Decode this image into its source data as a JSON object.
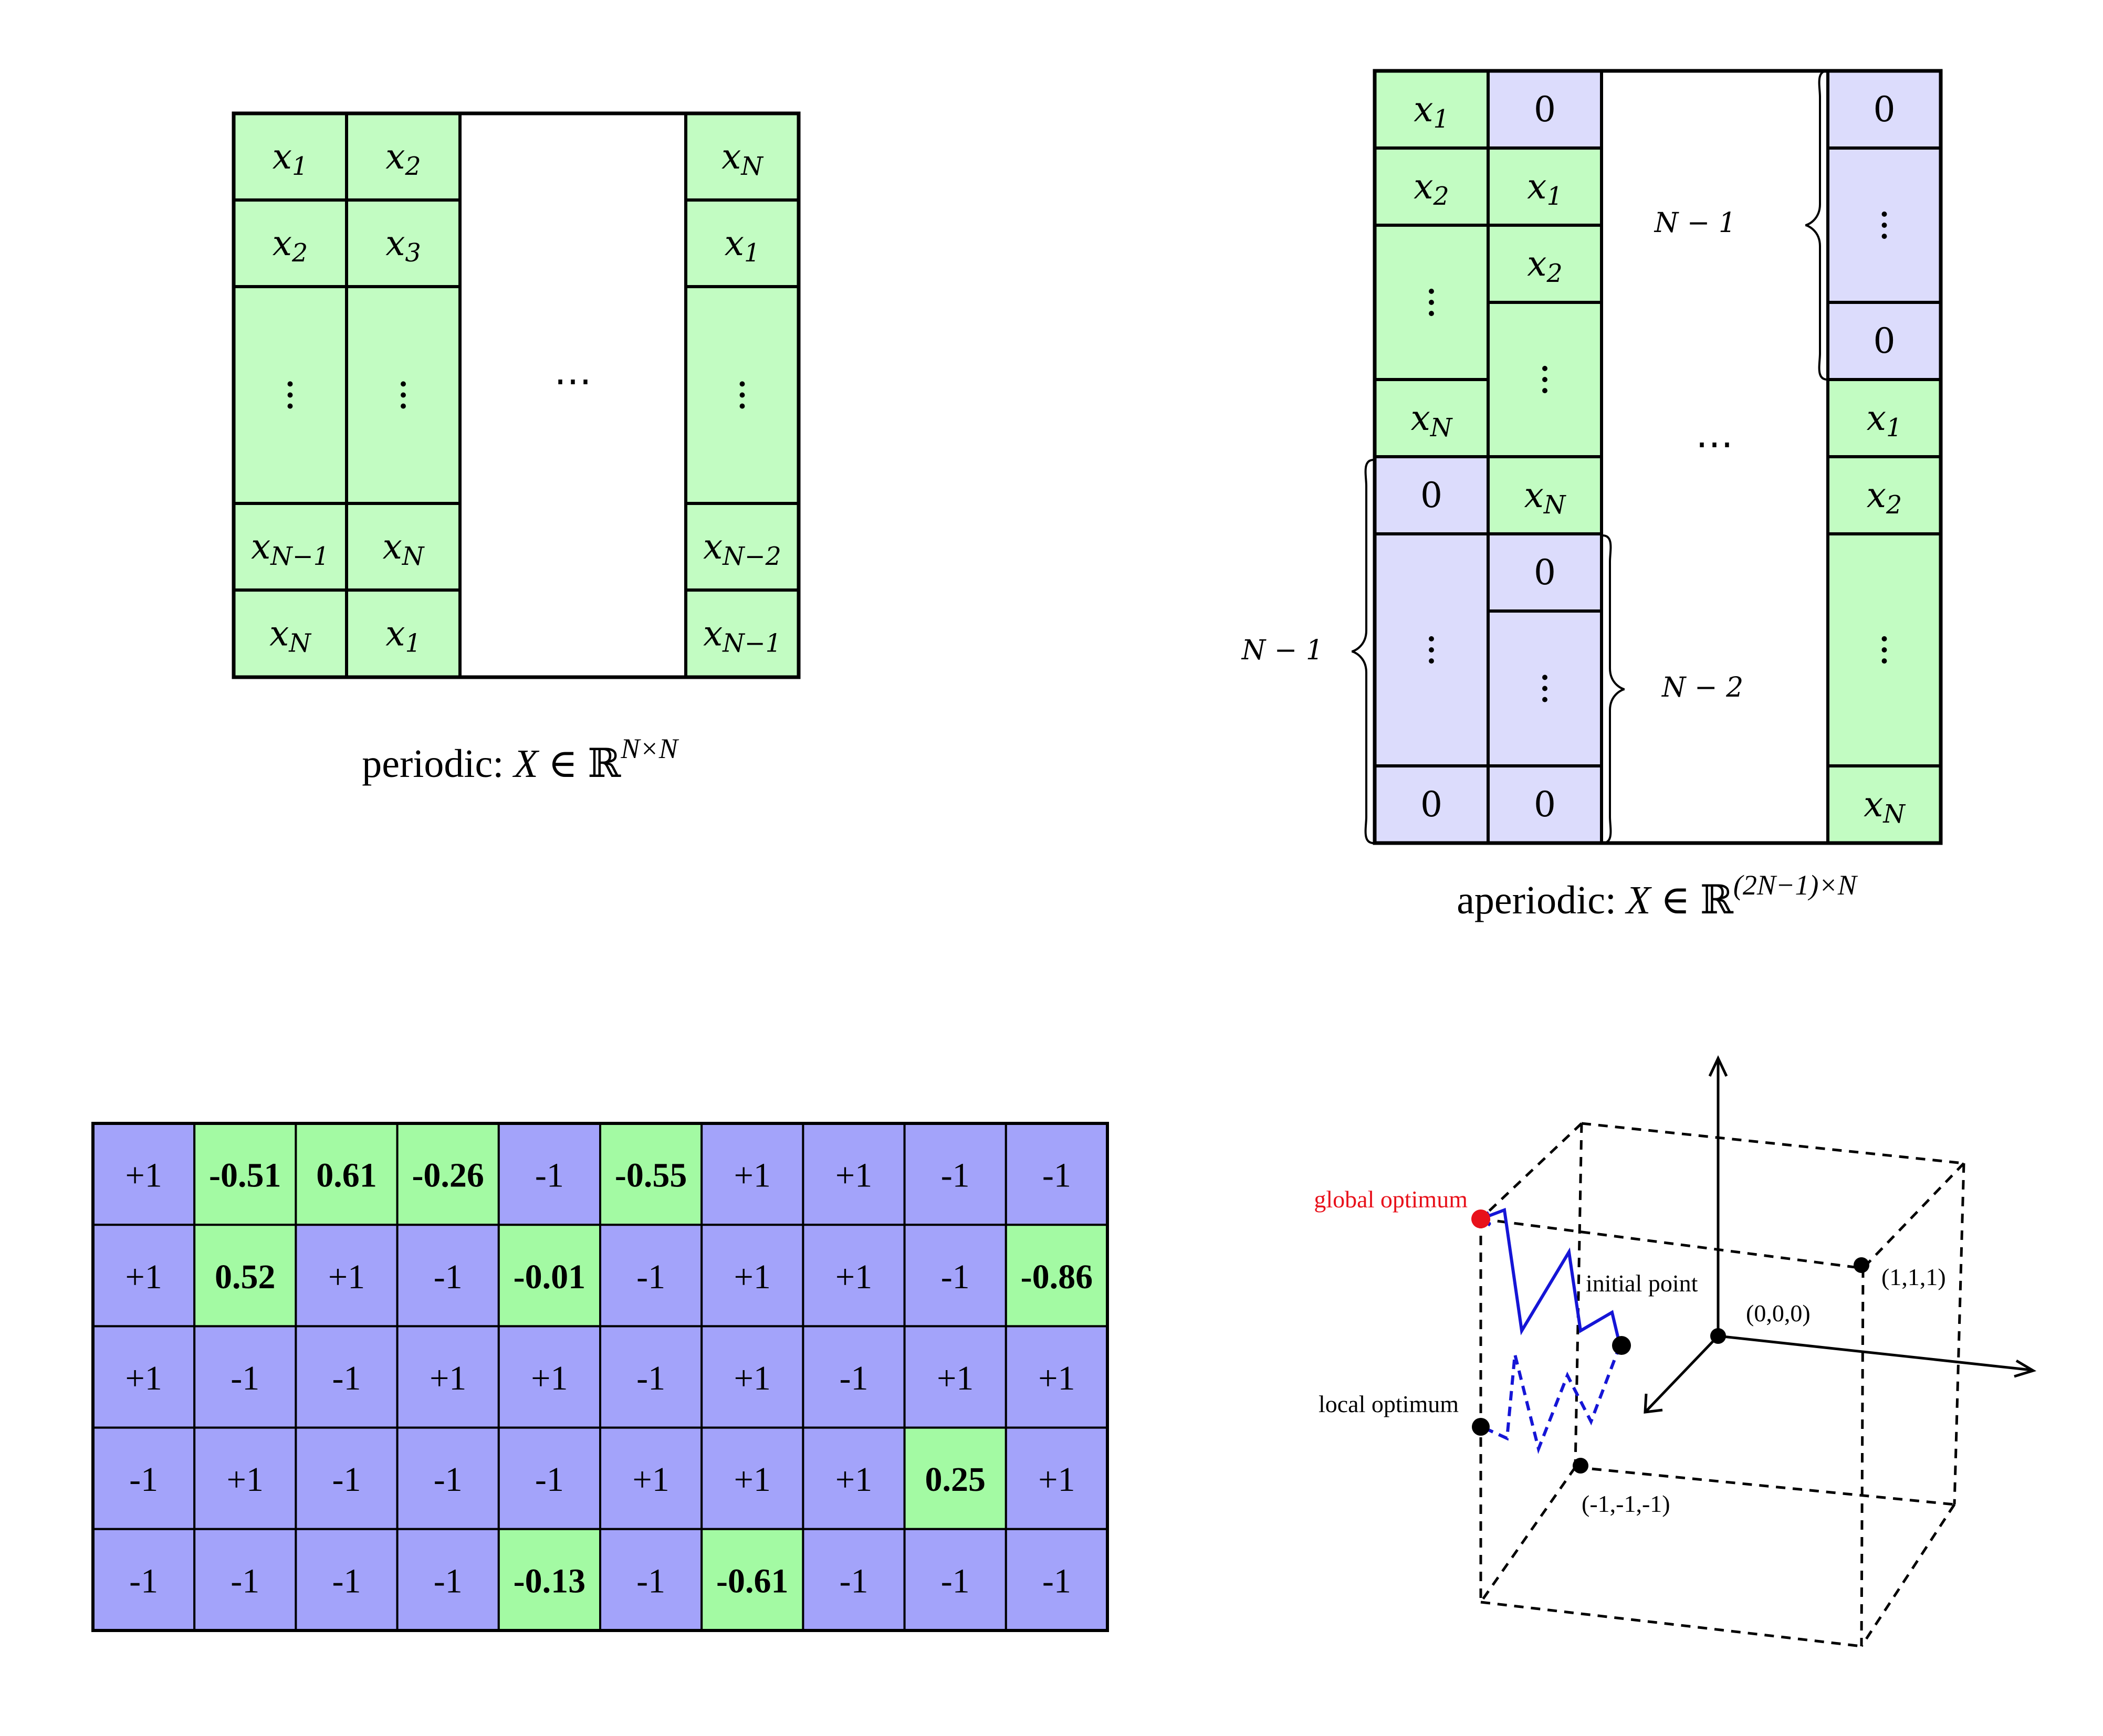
{
  "periodic": {
    "col1": [
      "x_1",
      "x_2",
      "⋮",
      "x_N−1",
      "x_N"
    ],
    "col2": [
      "x_2",
      "x_3",
      "⋮",
      "x_N",
      "x_1"
    ],
    "colN": [
      "x_N",
      "x_1",
      "⋮",
      "x_N−2",
      "x_N−1"
    ],
    "hdots": "⋯",
    "caption": "periodic: X ∈ ℝ^(N×N)",
    "caption_prefix": "periodic:",
    "caption_var": "X",
    "caption_rel": "∈",
    "caption_set": "ℝ",
    "caption_exp": "N×N"
  },
  "aperiodic": {
    "col1": [
      "x_1",
      "x_2",
      "⋮",
      "x_N",
      "0",
      "⋮",
      "0"
    ],
    "col2": [
      "0",
      "x_1",
      "x_2",
      "⋮",
      "x_N",
      "0",
      "⋮",
      "0"
    ],
    "colN": [
      "0",
      "⋮",
      "0",
      "x_1",
      "x_2",
      "⋮",
      "x_N"
    ],
    "hdots": "⋯",
    "brace_top_right": "N − 1",
    "brace_left": "N − 1",
    "brace_mid": "N − 2",
    "caption": "aperiodic: X ∈ ℝ^((2N−1)×N)",
    "caption_prefix": "aperiodic:",
    "caption_var": "X",
    "caption_rel": "∈",
    "caption_set": "ℝ",
    "caption_exp": "(2N−1)×N",
    "colors": {
      "green": "#c2fcc2",
      "lavender": "#dcdcfc"
    }
  },
  "grid": {
    "rows": [
      [
        "+1",
        "-0.51",
        "0.61",
        "-0.26",
        "-1",
        "-0.55",
        "+1",
        "+1",
        "-1",
        "-1"
      ],
      [
        "+1",
        "0.52",
        "+1",
        "-1",
        "-0.01",
        "-1",
        "+1",
        "+1",
        "-1",
        "-0.86"
      ],
      [
        "+1",
        "-1",
        "-1",
        "+1",
        "+1",
        "-1",
        "+1",
        "-1",
        "+1",
        "+1"
      ],
      [
        "-1",
        "+1",
        "-1",
        "-1",
        "-1",
        "+1",
        "+1",
        "+1",
        "0.25",
        "+1"
      ],
      [
        "-1",
        "-1",
        "-1",
        "-1",
        "-0.13",
        "-1",
        "-0.61",
        "-1",
        "-1",
        "-1"
      ]
    ],
    "colors": {
      "binary": "#a3a3fa",
      "relaxed": "#a3faa3"
    }
  },
  "cube": {
    "labels": {
      "global": "global optimum",
      "initial": "initial point",
      "local": "local optimum",
      "origin": "(0,0,0)",
      "ones": "(1,1,1)",
      "neg_ones": "(-1,-1,-1)"
    },
    "colors": {
      "global": "#e8111b",
      "path": "#1515d6"
    }
  }
}
